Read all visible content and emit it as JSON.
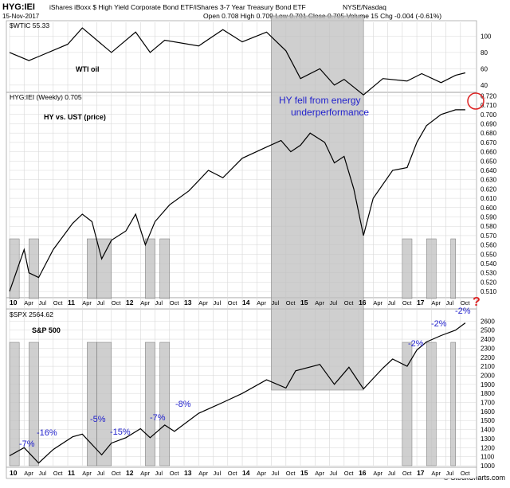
{
  "header": {
    "symbol": "HYG:IEI",
    "description": "iShares iBoxx $ High Yield Corporate Bond ETF/iShares 3-7 Year Treasury Bond ETF",
    "exchange": "NYSE/Nasdaq",
    "date": "15-Nov-2017",
    "ohlc": "Open 0.708  High 0.709  Low 0.701  Close 0.705  Volume 15  Chg -0.004 (-0.61%)",
    "source": "© StockCharts.com"
  },
  "colors": {
    "line": "#000000",
    "shade": "#bfbfbf",
    "annotation": "#2222cc",
    "callout": "#dd2222",
    "grid": "#d7d7d7"
  },
  "chart_data": [
    {
      "type": "line",
      "title": "$WTIC 55.33",
      "annotations": [
        "WTI oil"
      ],
      "ylim": [
        35,
        115
      ],
      "y_ticks": [
        40,
        60,
        80,
        100
      ],
      "series": [
        {
          "name": "$WTIC",
          "x": [
            "2010-01",
            "2010-05",
            "2010-07",
            "2011-01",
            "2011-04",
            "2011-10",
            "2012-03",
            "2012-06",
            "2012-09",
            "2013-04",
            "2013-09",
            "2014-01",
            "2014-06",
            "2014-10",
            "2015-01",
            "2015-05",
            "2015-08",
            "2015-10",
            "2016-02",
            "2016-06",
            "2016-11",
            "2017-02",
            "2017-06",
            "2017-09",
            "2017-11"
          ],
          "values": [
            80,
            70,
            75,
            90,
            110,
            80,
            105,
            80,
            95,
            88,
            108,
            93,
            105,
            82,
            48,
            60,
            40,
            47,
            28,
            48,
            45,
            54,
            43,
            52,
            55
          ]
        }
      ]
    },
    {
      "type": "line",
      "title": "HYG:IEI (Weekly) 0.705",
      "annotations": [
        "HY vs. UST (price)",
        "HY fell from energy",
        "underperformance"
      ],
      "ylim": [
        0.505,
        0.722
      ],
      "y_ticks": [
        0.51,
        0.52,
        0.53,
        0.54,
        0.55,
        0.56,
        0.57,
        0.58,
        0.59,
        0.6,
        0.61,
        0.62,
        0.63,
        0.64,
        0.65,
        0.66,
        0.67,
        0.68,
        0.69,
        0.7,
        0.71,
        0.72
      ],
      "series": [
        {
          "name": "HYG:IEI",
          "x": [
            "2010-01",
            "2010-04",
            "2010-05",
            "2010-07",
            "2010-10",
            "2011-02",
            "2011-04",
            "2011-06",
            "2011-08",
            "2011-10",
            "2012-01",
            "2012-03",
            "2012-05",
            "2012-07",
            "2012-10",
            "2013-02",
            "2013-06",
            "2013-09",
            "2014-01",
            "2014-06",
            "2014-09",
            "2014-11",
            "2015-01",
            "2015-03",
            "2015-06",
            "2015-08",
            "2015-10",
            "2015-12",
            "2016-02",
            "2016-04",
            "2016-08",
            "2016-11",
            "2017-01",
            "2017-03",
            "2017-06",
            "2017-09",
            "2017-11"
          ],
          "values": [
            0.51,
            0.555,
            0.53,
            0.525,
            0.555,
            0.583,
            0.593,
            0.585,
            0.545,
            0.565,
            0.575,
            0.593,
            0.56,
            0.585,
            0.603,
            0.618,
            0.64,
            0.632,
            0.653,
            0.665,
            0.672,
            0.66,
            0.667,
            0.68,
            0.67,
            0.648,
            0.655,
            0.62,
            0.57,
            0.61,
            0.64,
            0.643,
            0.67,
            0.688,
            0.7,
            0.705,
            0.705
          ]
        }
      ]
    },
    {
      "type": "line",
      "title": "$SPX 2564.62",
      "annotations": [
        "S&P 500"
      ],
      "ylim": [
        1000,
        2700
      ],
      "y_ticks": [
        1000,
        1100,
        1200,
        1300,
        1400,
        1500,
        1600,
        1700,
        1800,
        1900,
        2000,
        2100,
        2200,
        2300,
        2400,
        2500,
        2600
      ],
      "series": [
        {
          "name": "$SPX",
          "x": [
            "2010-01",
            "2010-04",
            "2010-07",
            "2010-10",
            "2011-02",
            "2011-04",
            "2011-08",
            "2011-10",
            "2012-01",
            "2012-04",
            "2012-06",
            "2012-09",
            "2012-11",
            "2013-04",
            "2013-09",
            "2014-01",
            "2014-06",
            "2014-10",
            "2014-12",
            "2015-05",
            "2015-08",
            "2015-11",
            "2016-02",
            "2016-06",
            "2016-08",
            "2016-11",
            "2017-01",
            "2017-03",
            "2017-06",
            "2017-09",
            "2017-11"
          ],
          "values": [
            1110,
            1200,
            1030,
            1180,
            1320,
            1350,
            1120,
            1250,
            1310,
            1410,
            1310,
            1450,
            1380,
            1580,
            1700,
            1800,
            1950,
            1860,
            2050,
            2120,
            1900,
            2090,
            1850,
            2080,
            2180,
            2100,
            2280,
            2370,
            2440,
            2500,
            2580
          ]
        }
      ],
      "drawdowns": [
        {
          "label": "-7%"
        },
        {
          "label": "-16%"
        },
        {
          "label": "-5%"
        },
        {
          "label": "-15%"
        },
        {
          "label": "-7%"
        },
        {
          "label": "-8%"
        },
        {
          "label": "-2%"
        },
        {
          "label": "-2%"
        },
        {
          "label": "-2%"
        }
      ],
      "callout": "?"
    }
  ],
  "x_axis": {
    "tick_labels": [
      "10",
      "Apr",
      "Jul",
      "Oct",
      "11",
      "Apr",
      "Jul",
      "Oct",
      "12",
      "Apr",
      "Jul",
      "Oct",
      "13",
      "Apr",
      "Jul",
      "Oct",
      "14",
      "Apr",
      "Jul",
      "Oct",
      "15",
      "Apr",
      "Jul",
      "Oct",
      "16",
      "Apr",
      "Jul",
      "Oct",
      "17",
      "Apr",
      "Jul",
      "Oct"
    ]
  },
  "shaded_periods": [
    {
      "start": "2010-01",
      "end": "2010-03"
    },
    {
      "start": "2010-05",
      "end": "2010-07"
    },
    {
      "start": "2011-05",
      "end": "2011-07"
    },
    {
      "start": "2011-07",
      "end": "2011-10"
    },
    {
      "start": "2012-05",
      "end": "2012-07"
    },
    {
      "start": "2012-08",
      "end": "2012-10"
    },
    {
      "start": "2014-07",
      "end": "2016-02"
    },
    {
      "start": "2016-10",
      "end": "2016-12"
    },
    {
      "start": "2017-03",
      "end": "2017-05"
    },
    {
      "start": "2017-08",
      "end": "2017-09"
    }
  ]
}
